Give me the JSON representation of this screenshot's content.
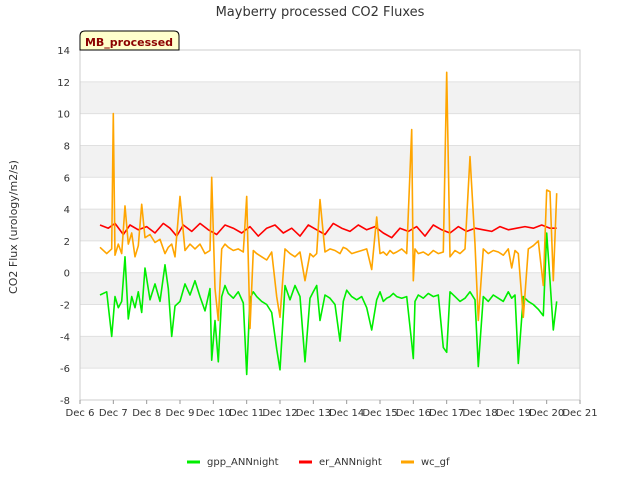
{
  "chart_data": {
    "type": "line",
    "title": "Mayberry processed CO2 Fluxes",
    "ylabel": "CO2 Flux (urology/m2/s)",
    "xlabel": "",
    "badge": "MB_processed",
    "ylim": [
      -8,
      14
    ],
    "xlim": [
      0,
      15
    ],
    "yticks": [
      -8,
      -6,
      -4,
      -2,
      0,
      2,
      4,
      6,
      8,
      10,
      12,
      14
    ],
    "xticks": [
      {
        "value": 0,
        "label": "Dec 6"
      },
      {
        "value": 1,
        "label": "Dec 7"
      },
      {
        "value": 2,
        "label": "Dec 8"
      },
      {
        "value": 3,
        "label": "Dec 9"
      },
      {
        "value": 4,
        "label": "Dec 10"
      },
      {
        "value": 5,
        "label": "Dec 11"
      },
      {
        "value": 6,
        "label": "Dec 12"
      },
      {
        "value": 7,
        "label": "Dec 13"
      },
      {
        "value": 8,
        "label": "Dec 14"
      },
      {
        "value": 9,
        "label": "Dec 15"
      },
      {
        "value": 10,
        "label": "Dec 16"
      },
      {
        "value": 11,
        "label": "Dec 17"
      },
      {
        "value": 12,
        "label": "Dec 18"
      },
      {
        "value": 13,
        "label": "Dec 19"
      },
      {
        "value": 14,
        "label": "Dec 20"
      },
      {
        "value": 15,
        "label": "Dec 21"
      }
    ],
    "legend_position": "bottom",
    "series": [
      {
        "name": "gpp_ANNnight",
        "color": "#00ee00",
        "x": [
          0.6,
          0.8,
          0.95,
          1.05,
          1.15,
          1.25,
          1.35,
          1.45,
          1.55,
          1.65,
          1.75,
          1.85,
          1.95,
          2.1,
          2.25,
          2.4,
          2.55,
          2.65,
          2.75,
          2.85,
          3.0,
          3.15,
          3.3,
          3.45,
          3.6,
          3.75,
          3.9,
          3.95,
          4.05,
          4.15,
          4.25,
          4.35,
          4.45,
          4.6,
          4.75,
          4.9,
          5.0,
          5.1,
          5.2,
          5.3,
          5.45,
          5.6,
          5.75,
          5.9,
          6.0,
          6.15,
          6.3,
          6.45,
          6.6,
          6.75,
          6.9,
          7.0,
          7.1,
          7.2,
          7.35,
          7.5,
          7.65,
          7.8,
          7.9,
          8.0,
          8.15,
          8.3,
          8.45,
          8.6,
          8.75,
          8.9,
          9.0,
          9.1,
          9.2,
          9.3,
          9.4,
          9.5,
          9.65,
          9.8,
          9.95,
          10.0,
          10.05,
          10.15,
          10.3,
          10.45,
          10.6,
          10.75,
          10.9,
          11.0,
          11.1,
          11.25,
          11.4,
          11.55,
          11.7,
          11.85,
          11.95,
          12.1,
          12.25,
          12.4,
          12.55,
          12.7,
          12.85,
          12.95,
          13.05,
          13.15,
          13.3,
          13.45,
          13.6,
          13.75,
          13.9,
          14.0,
          14.1,
          14.2,
          14.3
        ],
        "values": [
          -1.4,
          -1.2,
          -4.0,
          -1.5,
          -2.2,
          -1.8,
          1.0,
          -2.9,
          -1.5,
          -2.2,
          -1.2,
          -2.5,
          0.3,
          -1.7,
          -0.7,
          -1.8,
          0.5,
          -1.0,
          -4.0,
          -2.1,
          -1.8,
          -0.7,
          -1.4,
          -0.5,
          -1.5,
          -2.4,
          -1.0,
          -5.5,
          -3.0,
          -5.6,
          -1.5,
          -0.8,
          -1.3,
          -1.6,
          -1.2,
          -1.9,
          -6.4,
          -1.6,
          -1.2,
          -1.5,
          -1.8,
          -2.0,
          -2.5,
          -4.8,
          -6.1,
          -0.8,
          -1.7,
          -0.8,
          -1.5,
          -5.6,
          -1.6,
          -1.2,
          -0.8,
          -3.0,
          -1.4,
          -1.6,
          -2.0,
          -4.3,
          -1.8,
          -1.1,
          -1.5,
          -1.7,
          -1.5,
          -2.2,
          -3.6,
          -1.7,
          -1.2,
          -1.8,
          -1.6,
          -1.5,
          -1.3,
          -1.5,
          -1.6,
          -1.5,
          -4.4,
          -5.4,
          -1.8,
          -1.4,
          -1.6,
          -1.3,
          -1.5,
          -1.4,
          -4.7,
          -5.0,
          -1.2,
          -1.5,
          -1.8,
          -1.6,
          -1.2,
          -1.7,
          -5.9,
          -1.5,
          -1.8,
          -1.4,
          -1.6,
          -1.8,
          -1.2,
          -1.6,
          -1.4,
          -5.7,
          -1.5,
          -1.8,
          -2.0,
          -2.3,
          -2.7,
          2.5,
          -0.5,
          -3.6,
          -1.8
        ]
      },
      {
        "name": "er_ANNnight",
        "color": "#ff0000",
        "x": [
          0.6,
          0.85,
          1.05,
          1.3,
          1.5,
          1.75,
          2.0,
          2.25,
          2.5,
          2.7,
          2.9,
          3.1,
          3.35,
          3.6,
          3.85,
          4.1,
          4.35,
          4.6,
          4.85,
          5.1,
          5.35,
          5.6,
          5.85,
          6.1,
          6.35,
          6.6,
          6.85,
          7.1,
          7.35,
          7.6,
          7.85,
          8.1,
          8.35,
          8.6,
          8.85,
          9.1,
          9.35,
          9.6,
          9.85,
          10.1,
          10.35,
          10.6,
          10.85,
          11.1,
          11.35,
          11.6,
          11.85,
          12.1,
          12.35,
          12.6,
          12.85,
          13.1,
          13.35,
          13.6,
          13.85,
          14.1,
          14.3
        ],
        "values": [
          3.0,
          2.8,
          3.1,
          2.4,
          3.0,
          2.7,
          2.9,
          2.5,
          3.1,
          2.8,
          2.3,
          3.0,
          2.6,
          3.1,
          2.7,
          2.4,
          3.0,
          2.8,
          2.5,
          2.9,
          2.3,
          2.8,
          3.0,
          2.5,
          2.8,
          2.3,
          3.0,
          2.7,
          2.4,
          3.1,
          2.8,
          2.6,
          3.0,
          2.7,
          2.9,
          2.5,
          2.2,
          2.8,
          2.6,
          2.9,
          2.3,
          3.0,
          2.7,
          2.5,
          2.9,
          2.6,
          2.8,
          2.7,
          2.6,
          2.9,
          2.7,
          2.8,
          2.9,
          2.8,
          3.0,
          2.8,
          2.8
        ]
      },
      {
        "name": "wc_gf",
        "color": "#ffa500",
        "x": [
          0.6,
          0.8,
          0.95,
          1.0,
          1.05,
          1.15,
          1.25,
          1.35,
          1.45,
          1.55,
          1.65,
          1.75,
          1.85,
          1.95,
          2.1,
          2.25,
          2.4,
          2.55,
          2.65,
          2.75,
          2.85,
          3.0,
          3.15,
          3.3,
          3.45,
          3.6,
          3.75,
          3.9,
          3.95,
          4.05,
          4.15,
          4.25,
          4.35,
          4.45,
          4.6,
          4.75,
          4.9,
          5.0,
          5.1,
          5.2,
          5.3,
          5.45,
          5.6,
          5.75,
          5.9,
          6.0,
          6.15,
          6.3,
          6.45,
          6.6,
          6.75,
          6.9,
          7.0,
          7.1,
          7.2,
          7.35,
          7.5,
          7.65,
          7.8,
          7.9,
          8.0,
          8.15,
          8.3,
          8.45,
          8.6,
          8.75,
          8.9,
          9.0,
          9.1,
          9.2,
          9.3,
          9.4,
          9.5,
          9.65,
          9.8,
          9.95,
          10.0,
          10.05,
          10.15,
          10.3,
          10.45,
          10.6,
          10.75,
          10.9,
          11.0,
          11.1,
          11.25,
          11.4,
          11.55,
          11.7,
          11.85,
          11.95,
          12.1,
          12.25,
          12.4,
          12.55,
          12.7,
          12.85,
          12.95,
          13.05,
          13.15,
          13.3,
          13.45,
          13.6,
          13.75,
          13.9,
          14.0,
          14.1,
          14.2,
          14.3
        ],
        "values": [
          1.6,
          1.2,
          1.5,
          10.0,
          1.1,
          1.8,
          1.2,
          4.2,
          1.8,
          2.5,
          1.0,
          1.7,
          4.3,
          2.2,
          2.4,
          1.9,
          2.1,
          1.2,
          1.6,
          1.8,
          1.0,
          4.8,
          1.4,
          1.8,
          1.5,
          1.8,
          1.2,
          1.4,
          6.0,
          -1.0,
          -3.0,
          1.5,
          1.8,
          1.6,
          1.4,
          1.5,
          1.3,
          4.8,
          -3.5,
          1.4,
          1.2,
          1.0,
          0.8,
          1.3,
          -1.5,
          -2.8,
          1.5,
          1.2,
          1.0,
          1.3,
          -0.5,
          1.2,
          1.0,
          1.2,
          4.6,
          1.3,
          1.5,
          1.4,
          1.2,
          1.6,
          1.5,
          1.2,
          1.3,
          1.4,
          1.5,
          0.2,
          3.5,
          1.2,
          1.3,
          1.1,
          1.4,
          1.2,
          1.3,
          1.5,
          1.2,
          9.0,
          -0.5,
          1.5,
          1.2,
          1.3,
          1.1,
          1.4,
          1.2,
          1.3,
          12.6,
          1.0,
          1.4,
          1.2,
          1.5,
          7.3,
          1.8,
          -3.0,
          1.5,
          1.2,
          1.4,
          1.3,
          1.1,
          1.5,
          0.3,
          1.4,
          1.2,
          -2.8,
          1.5,
          1.7,
          2.0,
          -0.8,
          5.2,
          5.1,
          -0.5,
          5.0
        ]
      }
    ]
  }
}
